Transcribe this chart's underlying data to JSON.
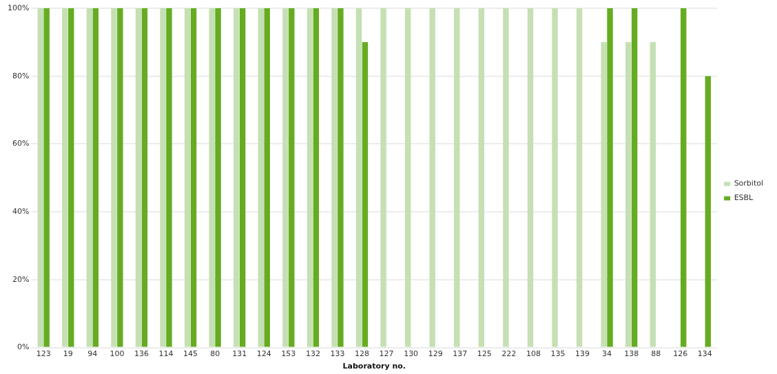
{
  "chart_data": {
    "type": "bar",
    "xlabel": "Laboratory no.",
    "categories": [
      "123",
      "19",
      "94",
      "100",
      "136",
      "114",
      "145",
      "80",
      "131",
      "124",
      "153",
      "132",
      "133",
      "128",
      "127",
      "130",
      "129",
      "137",
      "125",
      "222",
      "108",
      "135",
      "139",
      "34",
      "138",
      "88",
      "126",
      "134"
    ],
    "series": [
      {
        "name": "Sorbitol",
        "color": "#c5e0b3",
        "values": [
          100,
          100,
          100,
          100,
          100,
          100,
          100,
          100,
          100,
          100,
          100,
          100,
          100,
          100,
          100,
          100,
          100,
          100,
          100,
          100,
          100,
          100,
          100,
          90,
          90,
          90,
          null,
          null
        ]
      },
      {
        "name": "ESBL",
        "color": "#66ac22",
        "values": [
          100,
          100,
          100,
          100,
          100,
          100,
          100,
          100,
          100,
          100,
          100,
          100,
          100,
          90,
          null,
          null,
          null,
          null,
          null,
          null,
          null,
          null,
          null,
          100,
          100,
          null,
          100,
          80
        ]
      }
    ],
    "ylim": [
      0,
      100
    ],
    "yticks": [
      {
        "value": 0,
        "label": "0%"
      },
      {
        "value": 20,
        "label": "20%"
      },
      {
        "value": 40,
        "label": "40%"
      },
      {
        "value": 60,
        "label": "60%"
      },
      {
        "value": 80,
        "label": "80%"
      },
      {
        "value": 100,
        "label": "100%"
      }
    ],
    "grid": "y",
    "legend": "right"
  }
}
